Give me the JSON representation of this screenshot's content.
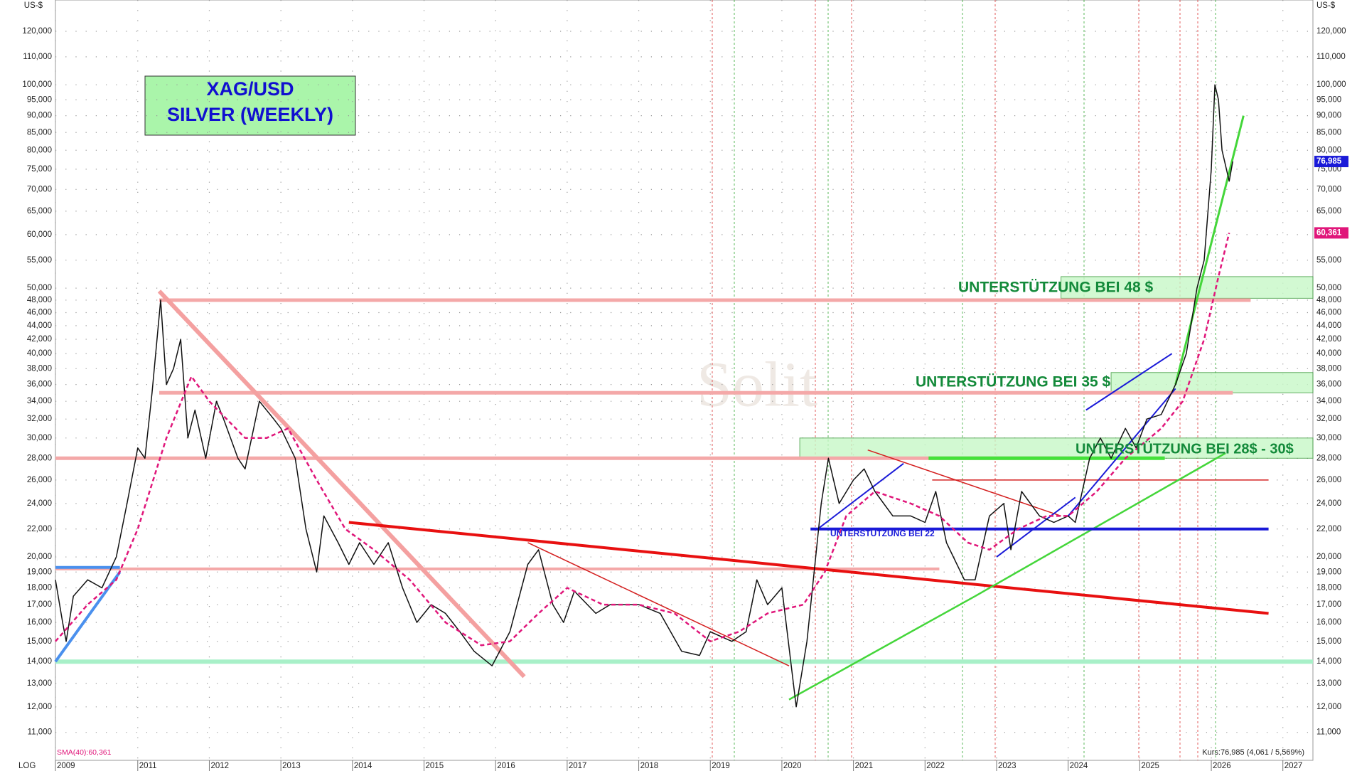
{
  "chart_data": {
    "type": "line",
    "log_scale": true,
    "grid": true,
    "title": [
      "XAG/USD",
      "SILVER (WEEKLY)"
    ],
    "y_unit": "US-$",
    "scale_label": "LOG",
    "sma_label": "SMA(40):60,361",
    "footer": "Kurs:76,985 (4,061 / 5,569%)",
    "watermark": "Solit",
    "xlim": [
      2009.85,
      2027.42
    ],
    "xticks": [
      {
        "value": 2009.85,
        "label": "2009"
      },
      2011,
      2012,
      2013,
      2014,
      2015,
      2016,
      2017,
      2018,
      2019,
      2020,
      2021,
      2022,
      2023,
      2024,
      2025,
      2026,
      2027
    ],
    "ylim": [
      10,
      133.5
    ],
    "yticks": [
      {
        "value": 11,
        "label": "11,000"
      },
      {
        "value": 12,
        "label": "12,000"
      },
      {
        "value": 13,
        "label": "13,000"
      },
      {
        "value": 14,
        "label": "14,000"
      },
      {
        "value": 15,
        "label": "15,000"
      },
      {
        "value": 16,
        "label": "16,000"
      },
      {
        "value": 17,
        "label": "17,000"
      },
      {
        "value": 18,
        "label": "18,000"
      },
      {
        "value": 19,
        "label": "19,000"
      },
      {
        "value": 20,
        "label": "20,000"
      },
      {
        "value": 22,
        "label": "22,000"
      },
      {
        "value": 24,
        "label": "24,000"
      },
      {
        "value": 26,
        "label": "26,000"
      },
      {
        "value": 28,
        "label": "28,000"
      },
      {
        "value": 30,
        "label": "30,000"
      },
      {
        "value": 32,
        "label": "32,000"
      },
      {
        "value": 34,
        "label": "34,000"
      },
      {
        "value": 36,
        "label": "36,000"
      },
      {
        "value": 38,
        "label": "38,000"
      },
      {
        "value": 40,
        "label": "40,000"
      },
      {
        "value": 42,
        "label": "42,000"
      },
      {
        "value": 44,
        "label": "44,000"
      },
      {
        "value": 46,
        "label": "46,000"
      },
      {
        "value": 48,
        "label": "48,000"
      },
      {
        "value": 50,
        "label": "50,000"
      },
      {
        "value": 55,
        "label": "55,000"
      },
      {
        "value": 60,
        "label": "60,000"
      },
      {
        "value": 65,
        "label": "65,000"
      },
      {
        "value": 70,
        "label": "70,000"
      },
      {
        "value": 75,
        "label": "75,000"
      },
      {
        "value": 80,
        "label": "80,000"
      },
      {
        "value": 85,
        "label": "85,000"
      },
      {
        "value": 90,
        "label": "90,000"
      },
      {
        "value": 95,
        "label": "95,000"
      },
      {
        "value": 100,
        "label": "100,000"
      },
      {
        "value": 110,
        "label": "110,000"
      },
      {
        "value": 120,
        "label": "120,000"
      }
    ],
    "series": [
      {
        "name": "XAG/USD",
        "color": "#111111",
        "dash": false,
        "x": [
          2009.85,
          2009.95,
          2010.0,
          2010.1,
          2010.3,
          2010.5,
          2010.7,
          2010.85,
          2011.0,
          2011.1,
          2011.2,
          2011.32,
          2011.4,
          2011.5,
          2011.6,
          2011.7,
          2011.8,
          2011.95,
          2012.1,
          2012.2,
          2012.4,
          2012.5,
          2012.7,
          2012.9,
          2013.0,
          2013.2,
          2013.35,
          2013.5,
          2013.6,
          2013.8,
          2013.95,
          2014.1,
          2014.3,
          2014.5,
          2014.7,
          2014.9,
          2015.1,
          2015.3,
          2015.5,
          2015.7,
          2015.95,
          2016.2,
          2016.45,
          2016.6,
          2016.8,
          2016.95,
          2017.1,
          2017.4,
          2017.6,
          2017.8,
          2018.0,
          2018.3,
          2018.6,
          2018.85,
          2019.0,
          2019.3,
          2019.5,
          2019.65,
          2019.8,
          2020.0,
          2020.2,
          2020.35,
          2020.55,
          2020.65,
          2020.8,
          2021.0,
          2021.15,
          2021.3,
          2021.55,
          2021.8,
          2022.0,
          2022.15,
          2022.3,
          2022.55,
          2022.7,
          2022.9,
          2023.1,
          2023.2,
          2023.35,
          2023.6,
          2023.8,
          2024.0,
          2024.1,
          2024.3,
          2024.45,
          2024.6,
          2024.8,
          2024.95,
          2025.1,
          2025.3,
          2025.5,
          2025.65,
          2025.8,
          2025.9,
          2026.0,
          2026.05,
          2026.1,
          2026.15,
          2026.25,
          2026.3
        ],
        "values": [
          18.5,
          16,
          15,
          17.5,
          18.5,
          18,
          20,
          24,
          29,
          28,
          35,
          48,
          36,
          38,
          42,
          30,
          33,
          28,
          34,
          32,
          28,
          27,
          34,
          32,
          31,
          28,
          22,
          19,
          23,
          21,
          19.5,
          21,
          19.5,
          21,
          18,
          16,
          17,
          16.5,
          15.5,
          14.5,
          13.8,
          15.5,
          19.5,
          20.5,
          17,
          16,
          17.8,
          16.5,
          17,
          17,
          17,
          16.5,
          14.5,
          14.3,
          15.5,
          15,
          15.5,
          18.5,
          17,
          18,
          12,
          15,
          24,
          28,
          24,
          26,
          27,
          25,
          23,
          23,
          22.5,
          25,
          21,
          18.5,
          18.5,
          23,
          24,
          20.5,
          25,
          23,
          22.5,
          23,
          22.5,
          28,
          30,
          28,
          31,
          29,
          32,
          32.5,
          36,
          40,
          50,
          55,
          75,
          100,
          95,
          80,
          72,
          77
        ]
      },
      {
        "name": "SMA(40)",
        "color": "#e0167a",
        "dash": true,
        "x": [
          2009.85,
          2010.3,
          2010.7,
          2011.0,
          2011.4,
          2011.75,
          2012.0,
          2012.5,
          2012.8,
          2013.1,
          2013.5,
          2013.9,
          2014.3,
          2014.8,
          2015.3,
          2015.8,
          2016.2,
          2016.6,
          2017.0,
          2017.5,
          2018.0,
          2018.5,
          2019.0,
          2019.4,
          2019.8,
          2020.3,
          2020.6,
          2020.9,
          2021.3,
          2021.8,
          2022.2,
          2022.6,
          2022.9,
          2023.3,
          2023.7,
          2024.0,
          2024.4,
          2024.8,
          2025.3,
          2025.6,
          2025.9,
          2026.1,
          2026.25
        ],
        "values": [
          15,
          17,
          18.5,
          22,
          30,
          37,
          34,
          30,
          30,
          31,
          26,
          22,
          20.5,
          18.5,
          16,
          14.8,
          15,
          16.5,
          18,
          17,
          17,
          16.5,
          15,
          15.5,
          16.5,
          17,
          19,
          23,
          25,
          24,
          23,
          21,
          20.5,
          22,
          23,
          23,
          25,
          28,
          31,
          34,
          42,
          52,
          60.361
        ]
      }
    ],
    "last_labels": [
      {
        "value": 76.985,
        "label": "76,985",
        "color": "#1a1ad8"
      },
      {
        "value": 60.361,
        "label": "60,361",
        "color": "#e0167a"
      }
    ],
    "zones": [
      {
        "low": 48.3,
        "high": 52,
        "x": [
          2023.9,
          2027.42
        ]
      },
      {
        "low": 35,
        "high": 37.5,
        "x": [
          2024.6,
          2027.42
        ]
      },
      {
        "low": 28,
        "high": 30,
        "x": [
          2020.25,
          2027.42
        ]
      }
    ],
    "trendlines": [
      {
        "color": "#f4a8a8",
        "width": 5,
        "x": [
          2011.3,
          2026.55
        ],
        "y": [
          48,
          48
        ]
      },
      {
        "color": "#f4a8a8",
        "width": 5,
        "x": [
          2011.3,
          2026.3
        ],
        "y": [
          35,
          35
        ]
      },
      {
        "color": "#f4a8a8",
        "width": 5,
        "x": [
          2009.85,
          2024.2
        ],
        "y": [
          28,
          28
        ]
      },
      {
        "color": "#f4a8a8",
        "width": 4,
        "x": [
          2009.85,
          2022.2
        ],
        "y": [
          19.2,
          19.2
        ]
      },
      {
        "color": "#a8f0c8",
        "width": 6,
        "x": [
          2009.85,
          2027.42
        ],
        "y": [
          14,
          14
        ]
      },
      {
        "color": "#f4a0a0",
        "width": 6,
        "x": [
          2011.3,
          2016.4
        ],
        "y": [
          49.5,
          13.3
        ]
      },
      {
        "color": "#e81010",
        "width": 4,
        "x": [
          2013.95,
          2026.8
        ],
        "y": [
          22.5,
          16.5
        ]
      },
      {
        "color": "#d42020",
        "width": 1.5,
        "x": [
          2016.45,
          2020.1
        ],
        "y": [
          21,
          13.8
        ]
      },
      {
        "color": "#d42020",
        "width": 1.5,
        "x": [
          2021.2,
          2023.9
        ],
        "y": [
          28.8,
          23
        ]
      },
      {
        "color": "#d42020",
        "width": 1.5,
        "x": [
          2022.1,
          2026.8
        ],
        "y": [
          26,
          26
        ]
      },
      {
        "color": "#44d63a",
        "width": 2.5,
        "x": [
          2020.1,
          2022.7
        ],
        "y": [
          12.3,
          17.5
        ]
      },
      {
        "color": "#44d63a",
        "width": 2.5,
        "x": [
          2022.7,
          2026.2
        ],
        "y": [
          17.5,
          28.5
        ]
      },
      {
        "color": "#44d63a",
        "width": 3,
        "x": [
          2025.5,
          2026.45
        ],
        "y": [
          36,
          90
        ]
      },
      {
        "color": "#44e23a",
        "width": 5,
        "x": [
          2022.05,
          2025.35
        ],
        "y": [
          28,
          28
        ]
      },
      {
        "color": "#1a1ad8",
        "width": 4,
        "x": [
          2020.4,
          2026.8
        ],
        "y": [
          22,
          22
        ]
      },
      {
        "color": "#1a1ad8",
        "width": 2,
        "x": [
          2020.5,
          2021.7
        ],
        "y": [
          22,
          27.5
        ]
      },
      {
        "color": "#1a1ad8",
        "width": 2,
        "x": [
          2023.0,
          2024.1
        ],
        "y": [
          20,
          24.5
        ]
      },
      {
        "color": "#1a1ad8",
        "width": 2,
        "x": [
          2024.0,
          2025.5
        ],
        "y": [
          23,
          35.5
        ]
      },
      {
        "color": "#1a1ad8",
        "width": 2,
        "x": [
          2024.25,
          2025.45
        ],
        "y": [
          33,
          40
        ]
      },
      {
        "color": "#4a90ee",
        "width": 4,
        "x": [
          2009.85,
          2010.75
        ],
        "y": [
          19.3,
          19.3
        ]
      },
      {
        "color": "#4a90ee",
        "width": 4,
        "x": [
          2009.85,
          2010.75
        ],
        "y": [
          14,
          19
        ]
      }
    ],
    "annotations": [
      "UNTERSTÜTZUNG BEI 48 $",
      "UNTERSTÜTZUNG BEI 35 $",
      "UNTERSTÜTZUNG BEI 28$ - 30$",
      "UNTERSTÜTZUNG BEI 22"
    ]
  }
}
